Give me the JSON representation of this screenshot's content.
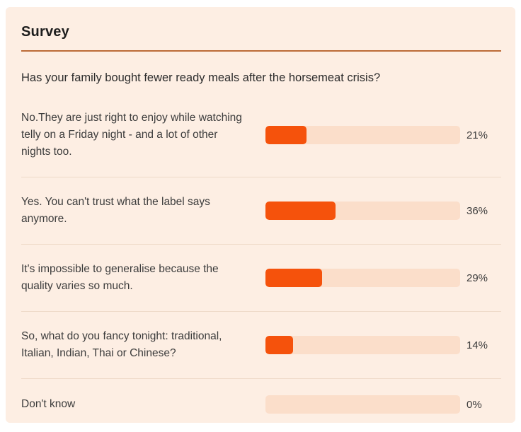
{
  "survey": {
    "title": "Survey",
    "question": "Has your family bought fewer ready meals after the horsemeat crisis?",
    "options": [
      {
        "label": "No.They are just right to enjoy while watching telly on a Friday night - and a lot of other nights too.",
        "percent": 21,
        "percent_label": "21%"
      },
      {
        "label": "Yes. You can't trust what the label says anymore.",
        "percent": 36,
        "percent_label": "36%"
      },
      {
        "label": "It's impossible to generalise because the quality varies so much.",
        "percent": 29,
        "percent_label": "29%"
      },
      {
        "label": "So, what do you fancy tonight: traditional, Italian, Indian, Thai or Chinese?",
        "percent": 14,
        "percent_label": "14%"
      },
      {
        "label": "Don't know",
        "percent": 0,
        "percent_label": "0%"
      }
    ]
  },
  "chart_data": {
    "type": "bar",
    "orientation": "horizontal",
    "title": "Survey",
    "subtitle": "Has your family bought fewer ready meals after the horsemeat crisis?",
    "categories": [
      "No.They are just right to enjoy while watching telly on a Friday night - and a lot of other nights too.",
      "Yes. You can't trust what the label says anymore.",
      "It's impossible to generalise because the quality varies so much.",
      "So, what do you fancy tonight: traditional, Italian, Indian, Thai or Chinese?",
      "Don't know"
    ],
    "values": [
      21,
      36,
      29,
      14,
      0
    ],
    "value_format": "percent",
    "xlim": [
      0,
      100
    ],
    "grid": false,
    "legend": false,
    "data_labels": [
      "21%",
      "36%",
      "29%",
      "14%",
      "0%"
    ]
  },
  "colors": {
    "card_background": "#fdeee3",
    "page_background": "#ffffff",
    "bar_fill": "#f5520c",
    "bar_track": "#fbdeca",
    "title_divider": "#bc6b37",
    "row_separator": "#eedac8",
    "title_text": "#1d1d1d",
    "question_text": "#2c2c2c",
    "option_text": "#3c3c3c"
  }
}
